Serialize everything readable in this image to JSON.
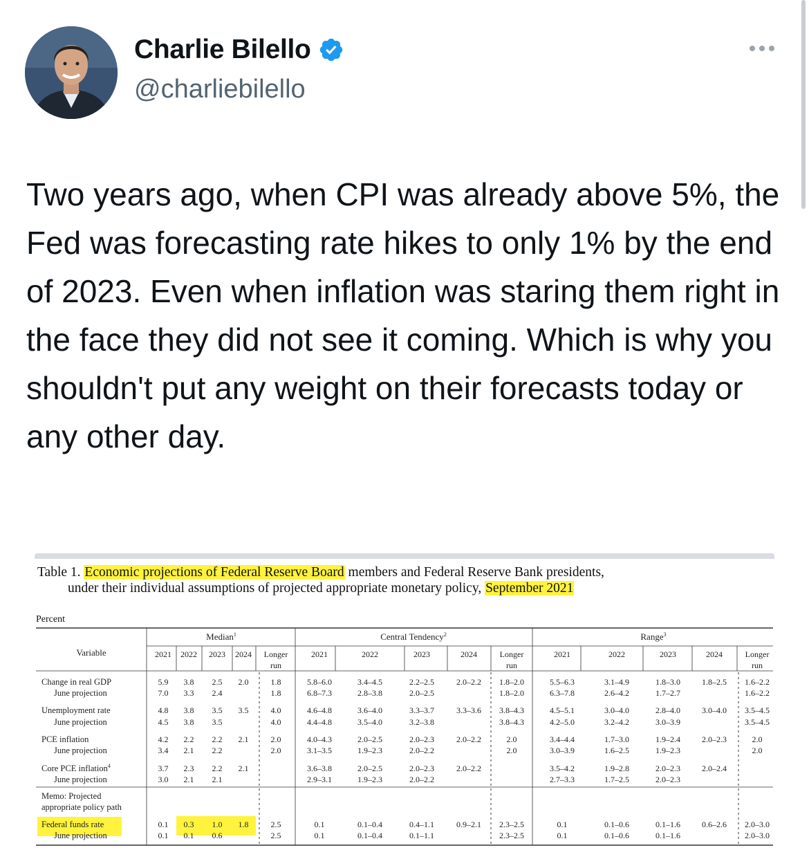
{
  "tweet": {
    "author_name": "Charlie Bilello",
    "handle": "@charliebilello",
    "verified": true,
    "text": "Two years ago, when CPI was already above 5%, the Fed was forecasting rate hikes to only 1% by the end of 2023. Even when inflation was staring them right in the face they did not see it coming. Which is why you shouldn't put any weight on their forecasts today or any other day."
  },
  "colors": {
    "verified": "#1d9bf0",
    "highlight": "#fff33d",
    "text": "#0f1419",
    "secondary": "#536471"
  },
  "icons": {
    "verified": "verified-badge-icon",
    "more": "more-options-icon"
  },
  "document": {
    "title_prefix": "Table 1.",
    "title_highlight": "Economic projections of Federal Reserve Board",
    "title_rest": "members and Federal Reserve Bank presidents,",
    "subtitle": "under their individual assumptions of projected appropriate monetary policy,",
    "subtitle_highlight": "September 2021",
    "unit_label": "Percent",
    "groups": [
      {
        "label": "Median",
        "sup": "1"
      },
      {
        "label": "Central Tendency",
        "sup": "2"
      },
      {
        "label": "Range",
        "sup": "3"
      }
    ],
    "variable_header": "Variable",
    "year_cols": [
      "2021",
      "2022",
      "2023",
      "2024",
      "Longer run"
    ],
    "rows": [
      {
        "label": "Change in real GDP",
        "sup": "",
        "indent": false,
        "median": [
          "5.9",
          "3.8",
          "2.5",
          "2.0",
          "1.8"
        ],
        "central": [
          "5.8–6.0",
          "3.4–4.5",
          "2.2–2.5",
          "2.0–2.2",
          "1.8–2.0"
        ],
        "range": [
          "5.5–6.3",
          "3.1–4.9",
          "1.8–3.0",
          "1.8–2.5",
          "1.6–2.2"
        ]
      },
      {
        "label": "June projection",
        "sup": "",
        "indent": true,
        "median": [
          "7.0",
          "3.3",
          "2.4",
          "",
          "1.8"
        ],
        "central": [
          "6.8–7.3",
          "2.8–3.8",
          "2.0–2.5",
          "",
          "1.8–2.0"
        ],
        "range": [
          "6.3–7.8",
          "2.6–4.2",
          "1.7–2.7",
          "",
          "1.6–2.2"
        ]
      },
      {
        "label": "Unemployment rate",
        "sup": "",
        "indent": false,
        "median": [
          "4.8",
          "3.8",
          "3.5",
          "3.5",
          "4.0"
        ],
        "central": [
          "4.6–4.8",
          "3.6–4.0",
          "3.3–3.7",
          "3.3–3.6",
          "3.8–4.3"
        ],
        "range": [
          "4.5–5.1",
          "3.0–4.0",
          "2.8–4.0",
          "3.0–4.0",
          "3.5–4.5"
        ]
      },
      {
        "label": "June projection",
        "sup": "",
        "indent": true,
        "median": [
          "4.5",
          "3.8",
          "3.5",
          "",
          "4.0"
        ],
        "central": [
          "4.4–4.8",
          "3.5–4.0",
          "3.2–3.8",
          "",
          "3.8–4.3"
        ],
        "range": [
          "4.2–5.0",
          "3.2–4.2",
          "3.0–3.9",
          "",
          "3.5–4.5"
        ]
      },
      {
        "label": "PCE inflation",
        "sup": "",
        "indent": false,
        "median": [
          "4.2",
          "2.2",
          "2.2",
          "2.1",
          "2.0"
        ],
        "central": [
          "4.0–4.3",
          "2.0–2.5",
          "2.0–2.3",
          "2.0–2.2",
          "2.0"
        ],
        "range": [
          "3.4–4.4",
          "1.7–3.0",
          "1.9–2.4",
          "2.0–2.3",
          "2.0"
        ]
      },
      {
        "label": "June projection",
        "sup": "",
        "indent": true,
        "median": [
          "3.4",
          "2.1",
          "2.2",
          "",
          "2.0"
        ],
        "central": [
          "3.1–3.5",
          "1.9–2.3",
          "2.0–2.2",
          "",
          "2.0"
        ],
        "range": [
          "3.0–3.9",
          "1.6–2.5",
          "1.9–2.3",
          "",
          "2.0"
        ]
      },
      {
        "label": "Core PCE inflation",
        "sup": "4",
        "indent": false,
        "median": [
          "3.7",
          "2.3",
          "2.2",
          "2.1",
          ""
        ],
        "central": [
          "3.6–3.8",
          "2.0–2.5",
          "2.0–2.3",
          "2.0–2.2",
          ""
        ],
        "range": [
          "3.5–4.2",
          "1.9–2.8",
          "2.0–2.3",
          "2.0–2.4",
          ""
        ]
      },
      {
        "label": "June projection",
        "sup": "",
        "indent": true,
        "median": [
          "3.0",
          "2.1",
          "2.1",
          "",
          ""
        ],
        "central": [
          "2.9–3.1",
          "1.9–2.3",
          "2.0–2.2",
          "",
          ""
        ],
        "range": [
          "2.7–3.3",
          "1.7–2.5",
          "2.0–2.3",
          "",
          ""
        ]
      }
    ],
    "memo_lines": [
      "Memo: Projected",
      "appropriate policy path"
    ],
    "ffr_rows": [
      {
        "label": "Federal funds rate",
        "indent": false,
        "median": [
          "0.1",
          "0.3",
          "1.0",
          "1.8",
          "2.5"
        ],
        "central": [
          "0.1",
          "0.1–0.4",
          "0.4–1.1",
          "0.9–2.1",
          "2.3–2.5"
        ],
        "range": [
          "0.1",
          "0.1–0.6",
          "0.1–1.6",
          "0.6–2.6",
          "2.0–3.0"
        ]
      },
      {
        "label": "June projection",
        "indent": true,
        "median": [
          "0.1",
          "0.1",
          "0.6",
          "",
          "2.5"
        ],
        "central": [
          "0.1",
          "0.1–0.4",
          "0.1–1.1",
          "",
          "2.3–2.5"
        ],
        "range": [
          "0.1",
          "0.1–0.6",
          "0.1–1.6",
          "",
          "2.0–3.0"
        ]
      }
    ]
  }
}
